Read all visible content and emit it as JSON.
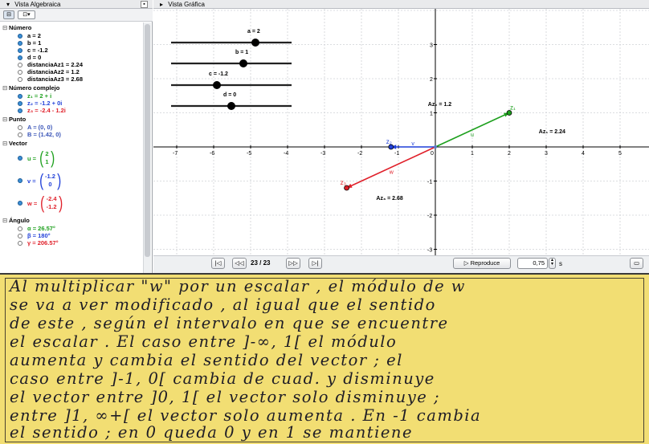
{
  "algebra_view": {
    "title": "Vista Algebraica",
    "close_icon": "close-icon",
    "groups": [
      {
        "label": "Número",
        "items": [
          {
            "text": "a = 2",
            "color": "#000000",
            "filled": true
          },
          {
            "text": "b = 1",
            "color": "#000000",
            "filled": true
          },
          {
            "text": "c = -1.2",
            "color": "#000000",
            "filled": true
          },
          {
            "text": "d = 0",
            "color": "#000000",
            "filled": true
          },
          {
            "text": "distanciaAz1 = 2.24",
            "color": "#000000",
            "filled": false
          },
          {
            "text": "distanciaAz2 = 1.2",
            "color": "#000000",
            "filled": false
          },
          {
            "text": "distanciaAz3 = 2.68",
            "color": "#000000",
            "filled": false
          }
        ]
      },
      {
        "label": "Número complejo",
        "items": [
          {
            "text": "z₁ = 2 + i",
            "color": "#1ea01e",
            "filled": true
          },
          {
            "text": "z₂ = -1.2 + 0i",
            "color": "#1f3fd8",
            "filled": true
          },
          {
            "text": "z₃ = -2.4 - 1.2i",
            "color": "#e0202a",
            "filled": true
          }
        ]
      },
      {
        "label": "Punto",
        "items": [
          {
            "text": "A = (0, 0)",
            "color": "#3a55b8",
            "filled": false
          },
          {
            "text": "B = (1.42, 0)",
            "color": "#3a55b8",
            "filled": false
          }
        ]
      },
      {
        "label": "Vector",
        "vectors": [
          {
            "name": "u =",
            "top": "2",
            "bottom": "1",
            "color": "#1ea01e"
          },
          {
            "name": "v =",
            "top": "-1.2",
            "bottom": "0",
            "color": "#1f3fd8"
          },
          {
            "name": "w =",
            "top": "-2.4",
            "bottom": "-1.2",
            "color": "#e0202a"
          }
        ]
      },
      {
        "label": "Ángulo",
        "items": [
          {
            "text": "α = 26.57°",
            "color": "#1ea01e",
            "filled": false
          },
          {
            "text": "β = 180°",
            "color": "#1f3fd8",
            "filled": false
          },
          {
            "text": "γ = 206.57°",
            "color": "#e0202a",
            "filled": false
          }
        ]
      }
    ]
  },
  "graphics_view": {
    "title": "Vista Gráfica",
    "x_ticks": [
      "-7",
      "-6",
      "-5",
      "-4",
      "-3",
      "-2",
      "-1",
      "0",
      "1",
      "2",
      "3",
      "4",
      "5"
    ],
    "y_ticks": [
      "3",
      "2",
      "1",
      "-1",
      "-2",
      "-3"
    ],
    "sliders": [
      {
        "label": "a = 2",
        "value": 2
      },
      {
        "label": "b = 1",
        "value": 1
      },
      {
        "label": "c = -1.2",
        "value": -1.2
      },
      {
        "label": "d = 0",
        "value": 0
      }
    ],
    "points": [
      {
        "name": "z1",
        "label": "z₁",
        "x": 2,
        "y": 1,
        "color": "#1ea01e",
        "vector_label": "u"
      },
      {
        "name": "z2",
        "label": "z₂",
        "x": -1.2,
        "y": 0,
        "color": "#1f3fd8",
        "vector_label": "v"
      },
      {
        "name": "z3",
        "label": "z₃",
        "x": -2.4,
        "y": -1.2,
        "color": "#e0202a",
        "vector_label": "w"
      }
    ],
    "annotations": {
      "az1": "Az₁ = 2.24",
      "az2": "Az₂ = 1.2",
      "az3": "Az₃ = 2.68"
    }
  },
  "playback": {
    "first_icon": "first-icon",
    "prev_icon": "previous-icon",
    "counter": "23 / 23",
    "next_icon": "next-icon",
    "last_icon": "last-icon",
    "play_label": "▷ Reproduce",
    "speed": "0,75",
    "speed_unit": "s",
    "settings_icon": "settings-icon"
  },
  "note": {
    "lines": [
      "Al multiplicar \"w\"  por  un  escalar ,  el  módulo  de  w",
      "se  va  a  ver  modificado , al  igual  que  el  sentido",
      "de  este ,  según  el  intervalo  en  que  se  encuentre",
      "el  escalar .  El  caso  entre   ]-∞, 1[   el  módulo",
      "aumenta  y  cambia  el  sentido  del  vector ;  el",
      "caso  entre  ]-1, 0[  cambia  de  cuad.  y  disminuye",
      "el  vector  entre  ]0, 1[  el  vector  solo  disminuye ;",
      "entre  ]1, ∞+[  el  vector  solo  aumenta .  En  -1  cambia",
      "el sentido ;  en  0  queda  0  y  en  1  se  mantiene"
    ]
  }
}
